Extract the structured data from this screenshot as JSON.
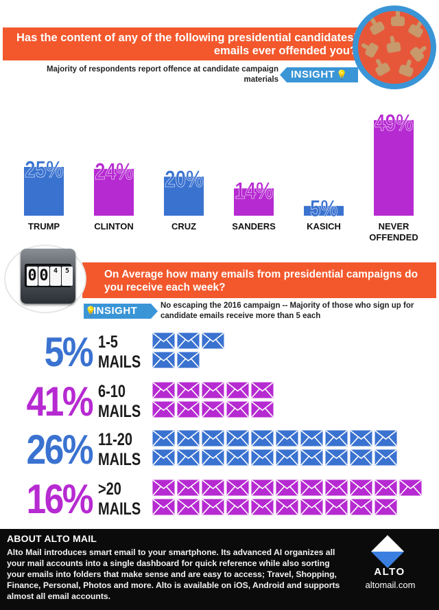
{
  "section1": {
    "question": "Has the content of any of the following presidential candidates’ emails ever offended you?",
    "insight_label": "INSIGHT",
    "insight_text": "Majority of respondents report offence at candidate campaign materials",
    "thumbs_icon": "thumbs-down-icon"
  },
  "chart_data": {
    "type": "bar",
    "categories": [
      "TRUMP",
      "CLINTON",
      "CRUZ",
      "SANDERS",
      "KASICH",
      "NEVER OFFENDED"
    ],
    "values": [
      25,
      24,
      20,
      14,
      5,
      49
    ],
    "value_labels": [
      "25%",
      "24%",
      "20%",
      "14%",
      "5%",
      "49%"
    ],
    "colors": [
      "#3a72d0",
      "#b62ad1",
      "#3a72d0",
      "#b62ad1",
      "#3a72d0",
      "#b62ad1"
    ],
    "ylim": [
      0,
      50
    ],
    "title": "",
    "xlabel": "",
    "ylabel": ""
  },
  "section2": {
    "question": "On Average how many emails from presidential campaigns do you receive each week?",
    "insight_label": "INSIGHT",
    "insight_text": "No escaping the 2016 campaign -- Majority of those who sign up for candidate emails receive more than 5 each",
    "counter_digits": [
      "0",
      "0",
      "4",
      "5"
    ],
    "rows": [
      {
        "pct": "5%",
        "label1": "1-5",
        "label2": "MAILS",
        "color": "#3a72d0",
        "envelopes": 5
      },
      {
        "pct": "41%",
        "label1": "6-10",
        "label2": "MAILS",
        "color": "#b62ad1",
        "envelopes": 10
      },
      {
        "pct": "26%",
        "label1": "11-20",
        "label2": "MAILS",
        "color": "#3a72d0",
        "envelopes": 20
      },
      {
        "pct": "16%",
        "label1": ">20",
        "label2": "MAILS",
        "color": "#b62ad1",
        "envelopes": 21
      }
    ]
  },
  "footer": {
    "title": "ABOUT ALTO MAIL",
    "body": "Alto Mail introduces smart email to your smartphone. Its advanced AI organizes all your mail accounts into a single dashboard for quick reference while also sorting your emails into folders that make sense and are easy to access; Travel, Shopping, Finance, Personal, Photos and more. Alto is available on iOS, Android and supports almost all email accounts.",
    "brand": "ALTO",
    "url": "altomail.com"
  }
}
